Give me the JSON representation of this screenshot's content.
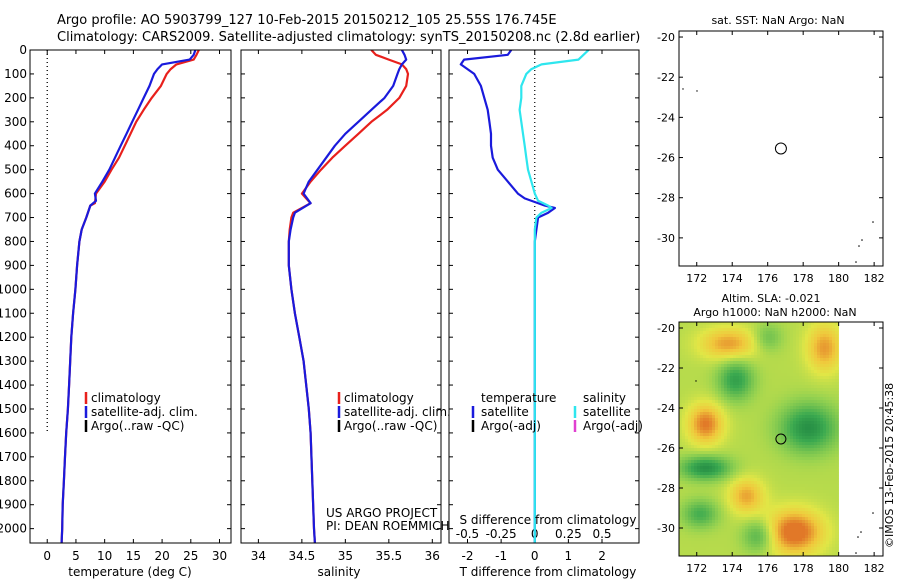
{
  "header": {
    "line1": "Argo profile: AO 5903799_127 10-Feb-2015 20150212_105 25.55S 176.745E",
    "line2": "Climatology: CARS2009. Satellite-adjusted climatology: synTS_20150208.nc (2.8d earlier)"
  },
  "credit": {
    "project": "US ARGO PROJECT",
    "pi": "PI: DEAN ROEMMICH"
  },
  "timestamp": "©IMOS 13-Feb-2015 20:45:38",
  "colors": {
    "climatology": "#e8201c",
    "satellite": "#1a1adc",
    "argo": "#000000",
    "sal_satellite": "#2ee6ee",
    "sal_argo": "#e040d0"
  },
  "chart_data": [
    {
      "type": "line",
      "name": "temperature-profile",
      "xlabel": "temperature (deg C)",
      "ylabel": "",
      "xlim": [
        -3,
        32
      ],
      "ylim": [
        0,
        2060
      ],
      "xticks": [
        "0",
        "5",
        "10",
        "15",
        "20",
        "25",
        "30"
      ],
      "xtick_values": [
        0,
        5,
        10,
        15,
        20,
        25,
        30
      ],
      "yticks": [
        "0",
        "100",
        "200",
        "300",
        "400",
        "500",
        "600",
        "700",
        "800",
        "900",
        "1000",
        "1100",
        "1200",
        "1300",
        "1400",
        "1500",
        "1600",
        "1700",
        "1800",
        "1900",
        "2000"
      ],
      "ytick_values": [
        0,
        100,
        200,
        300,
        400,
        500,
        600,
        700,
        800,
        900,
        1000,
        1100,
        1200,
        1300,
        1400,
        1500,
        1600,
        1700,
        1800,
        1900,
        2000
      ],
      "legend": [
        "climatology",
        "satellite-adj. clim.",
        "Argo(..raw -QC)"
      ],
      "legend_position": "bottom-right",
      "reference_line": {
        "x": 0,
        "from": 0,
        "to": 1600
      },
      "series": [
        {
          "name": "climatology",
          "key": "climatology",
          "points": [
            [
              26.4,
              0
            ],
            [
              26,
              20
            ],
            [
              25.5,
              40
            ],
            [
              22.5,
              60
            ],
            [
              21.5,
              80
            ],
            [
              20.8,
              100
            ],
            [
              19.8,
              150
            ],
            [
              18.2,
              200
            ],
            [
              16.8,
              250
            ],
            [
              15.5,
              300
            ],
            [
              14.5,
              350
            ],
            [
              13.5,
              400
            ],
            [
              12.5,
              450
            ],
            [
              11.2,
              500
            ],
            [
              10,
              550
            ],
            [
              8.5,
              600
            ],
            [
              8.3,
              640
            ],
            [
              7.5,
              650
            ],
            [
              6.8,
              700
            ],
            [
              6,
              750
            ],
            [
              5.6,
              800
            ],
            [
              5.2,
              900
            ],
            [
              4.9,
              1000
            ],
            [
              4.5,
              1100
            ],
            [
              4.2,
              1200
            ],
            [
              4,
              1300
            ],
            [
              3.8,
              1400
            ],
            [
              3.6,
              1500
            ],
            [
              3.3,
              1600
            ],
            [
              3.1,
              1700
            ],
            [
              2.9,
              1800
            ],
            [
              2.7,
              1900
            ],
            [
              2.6,
              2000
            ],
            [
              2.5,
              2060
            ]
          ]
        },
        {
          "name": "satellite-adj. clim.",
          "key": "satellite",
          "points": [
            [
              25.8,
              0
            ],
            [
              25.5,
              20
            ],
            [
              24.8,
              40
            ],
            [
              20,
              60
            ],
            [
              19.2,
              80
            ],
            [
              18.6,
              100
            ],
            [
              17.8,
              150
            ],
            [
              16.8,
              200
            ],
            [
              15.8,
              250
            ],
            [
              14.8,
              300
            ],
            [
              13.8,
              350
            ],
            [
              12.8,
              400
            ],
            [
              11.8,
              450
            ],
            [
              10.8,
              500
            ],
            [
              9.6,
              550
            ],
            [
              8.3,
              600
            ],
            [
              8.5,
              630
            ],
            [
              7.5,
              650
            ],
            [
              6.8,
              700
            ],
            [
              6,
              750
            ],
            [
              5.6,
              800
            ],
            [
              5.2,
              900
            ],
            [
              4.9,
              1000
            ],
            [
              4.5,
              1100
            ],
            [
              4.2,
              1200
            ],
            [
              4,
              1300
            ],
            [
              3.8,
              1400
            ],
            [
              3.6,
              1500
            ],
            [
              3.3,
              1600
            ],
            [
              3.1,
              1700
            ],
            [
              2.9,
              1800
            ],
            [
              2.7,
              1900
            ],
            [
              2.6,
              2000
            ],
            [
              2.5,
              2060
            ]
          ]
        }
      ]
    },
    {
      "type": "line",
      "name": "salinity-profile",
      "xlabel": "salinity",
      "xlim": [
        33.8,
        36.1
      ],
      "ylim": [
        0,
        2060
      ],
      "xticks": [
        "34",
        "34.5",
        "35",
        "35.5",
        "36"
      ],
      "xtick_values": [
        34,
        34.5,
        35,
        35.5,
        36
      ],
      "legend": [
        "climatology",
        "satellite-adj. clim.",
        "Argo(..raw -QC)"
      ],
      "legend_position": "bottom-right",
      "series": [
        {
          "name": "climatology",
          "key": "climatology",
          "points": [
            [
              35.3,
              0
            ],
            [
              35.35,
              20
            ],
            [
              35.5,
              40
            ],
            [
              35.65,
              60
            ],
            [
              35.7,
              80
            ],
            [
              35.72,
              100
            ],
            [
              35.7,
              150
            ],
            [
              35.62,
              200
            ],
            [
              35.48,
              250
            ],
            [
              35.3,
              300
            ],
            [
              35.15,
              350
            ],
            [
              35,
              400
            ],
            [
              34.85,
              450
            ],
            [
              34.72,
              500
            ],
            [
              34.6,
              550
            ],
            [
              34.5,
              600
            ],
            [
              34.6,
              640
            ],
            [
              34.4,
              680
            ],
            [
              34.38,
              700
            ],
            [
              34.36,
              750
            ],
            [
              34.35,
              800
            ],
            [
              34.35,
              900
            ],
            [
              34.38,
              1000
            ],
            [
              34.42,
              1100
            ],
            [
              34.47,
              1200
            ],
            [
              34.52,
              1300
            ],
            [
              34.55,
              1400
            ],
            [
              34.58,
              1500
            ],
            [
              34.6,
              1600
            ],
            [
              34.62,
              1800
            ],
            [
              34.64,
              2000
            ],
            [
              34.65,
              2060
            ]
          ]
        },
        {
          "name": "satellite-adj. clim.",
          "key": "satellite",
          "points": [
            [
              35.65,
              0
            ],
            [
              35.68,
              20
            ],
            [
              35.7,
              40
            ],
            [
              35.65,
              60
            ],
            [
              35.62,
              80
            ],
            [
              35.6,
              100
            ],
            [
              35.55,
              150
            ],
            [
              35.45,
              200
            ],
            [
              35.3,
              250
            ],
            [
              35.15,
              300
            ],
            [
              35,
              350
            ],
            [
              34.88,
              400
            ],
            [
              34.78,
              450
            ],
            [
              34.68,
              500
            ],
            [
              34.58,
              550
            ],
            [
              34.52,
              600
            ],
            [
              34.6,
              640
            ],
            [
              34.42,
              680
            ],
            [
              34.4,
              700
            ],
            [
              34.37,
              750
            ],
            [
              34.35,
              800
            ],
            [
              34.35,
              900
            ],
            [
              34.38,
              1000
            ],
            [
              34.42,
              1100
            ],
            [
              34.47,
              1200
            ],
            [
              34.52,
              1300
            ],
            [
              34.55,
              1400
            ],
            [
              34.58,
              1500
            ],
            [
              34.6,
              1600
            ],
            [
              34.62,
              1800
            ],
            [
              34.64,
              2000
            ],
            [
              34.65,
              2060
            ]
          ]
        }
      ]
    },
    {
      "type": "line",
      "name": "difference-profile",
      "xlabel": "T difference from climatology",
      "x2label": "S difference from climatology",
      "xlim": [
        -2.55,
        3.1
      ],
      "ylim": [
        0,
        2060
      ],
      "xticks": [
        "-2",
        "-1",
        "0",
        "1",
        "2"
      ],
      "xtick_values": [
        -2,
        -1,
        0,
        1,
        2
      ],
      "x2ticks": [
        "-0.5",
        "-0.25",
        "0",
        "0.25",
        "0.5"
      ],
      "x2tick_values": [
        -2,
        -1,
        0,
        1,
        2
      ],
      "reference_line": {
        "x": 0,
        "from": 0,
        "to": 2060
      },
      "legend_left": {
        "title": "temperature",
        "items": [
          "satellite",
          "Argo(-adj)"
        ]
      },
      "legend_right": {
        "title": "salinity",
        "items": [
          "satellite",
          "Argo(-adj)"
        ]
      },
      "legend_position": "bottom",
      "series": [
        {
          "name": "temperature satellite",
          "key": "satellite",
          "points": [
            [
              -0.7,
              0
            ],
            [
              -0.8,
              20
            ],
            [
              -2.1,
              40
            ],
            [
              -2.2,
              60
            ],
            [
              -2.0,
              80
            ],
            [
              -1.8,
              100
            ],
            [
              -1.6,
              150
            ],
            [
              -1.5,
              200
            ],
            [
              -1.4,
              250
            ],
            [
              -1.35,
              300
            ],
            [
              -1.3,
              350
            ],
            [
              -1.3,
              400
            ],
            [
              -1.25,
              450
            ],
            [
              -1.1,
              500
            ],
            [
              -0.8,
              550
            ],
            [
              -0.5,
              600
            ],
            [
              -0.3,
              620
            ],
            [
              0.3,
              650
            ],
            [
              0.6,
              660
            ],
            [
              0.4,
              680
            ],
            [
              0.1,
              700
            ],
            [
              0.05,
              750
            ],
            [
              0,
              800
            ],
            [
              0,
              900
            ],
            [
              0,
              1000
            ],
            [
              0,
              1100
            ],
            [
              0,
              1200
            ],
            [
              0,
              1300
            ],
            [
              0,
              1400
            ],
            [
              0,
              1500
            ],
            [
              0,
              1700
            ],
            [
              0,
              2060
            ]
          ]
        },
        {
          "name": "salinity satellite",
          "key": "sal_satellite",
          "points": [
            [
              1.6,
              0
            ],
            [
              1.3,
              40
            ],
            [
              0.2,
              60
            ],
            [
              -0.1,
              80
            ],
            [
              -0.25,
              100
            ],
            [
              -0.4,
              150
            ],
            [
              -0.4,
              200
            ],
            [
              -0.45,
              250
            ],
            [
              -0.4,
              300
            ],
            [
              -0.35,
              350
            ],
            [
              -0.3,
              400
            ],
            [
              -0.25,
              450
            ],
            [
              -0.2,
              500
            ],
            [
              -0.1,
              550
            ],
            [
              0,
              600
            ],
            [
              0.1,
              630
            ],
            [
              0.4,
              650
            ],
            [
              0.5,
              660
            ],
            [
              0.2,
              680
            ],
            [
              0.05,
              700
            ],
            [
              0,
              750
            ],
            [
              0,
              900
            ],
            [
              0,
              1200
            ],
            [
              0,
              1500
            ],
            [
              0,
              2060
            ]
          ]
        }
      ]
    },
    {
      "type": "map",
      "name": "sst-map",
      "title": "sat. SST: NaN Argo: NaN",
      "xlim": [
        171,
        182.5
      ],
      "ylim": [
        -31.4,
        -19.7
      ],
      "xticks": [
        "172",
        "174",
        "176",
        "178",
        "180",
        "182"
      ],
      "xtick_values": [
        172,
        174,
        176,
        178,
        180,
        182
      ],
      "yticks": [
        "-20",
        "-22",
        "-24",
        "-26",
        "-28",
        "-30"
      ],
      "ytick_values": [
        -20,
        -22,
        -24,
        -26,
        -28,
        -30
      ],
      "marker": {
        "lon": 176.745,
        "lat": -25.55
      }
    },
    {
      "type": "heatmap",
      "name": "sla-map",
      "title_line1": "Altim. SLA: -0.021",
      "title_line2": "Argo h1000: NaN h2000: NaN",
      "xlim": [
        171,
        182.5
      ],
      "ylim": [
        -31.4,
        -19.7
      ],
      "data_lon_max": 180,
      "xticks": [
        "172",
        "174",
        "176",
        "178",
        "180",
        "182"
      ],
      "xtick_values": [
        172,
        174,
        176,
        178,
        180,
        182
      ],
      "yticks": [
        "-20",
        "-22",
        "-24",
        "-26",
        "-28",
        "-30"
      ],
      "ytick_values": [
        -20,
        -22,
        -24,
        -26,
        -28,
        -30
      ],
      "marker": {
        "lon": 176.745,
        "lat": -25.55
      },
      "blobs": [
        {
          "lon": 177.5,
          "lat": -30.2,
          "level": 1.0,
          "rx": 1.6,
          "ry": 1.1
        },
        {
          "lon": 172.5,
          "lat": -24.8,
          "level": 0.85,
          "rx": 1.0,
          "ry": 1.0
        },
        {
          "lon": 173.8,
          "lat": -20.8,
          "level": 0.7,
          "rx": 1.6,
          "ry": 0.8
        },
        {
          "lon": 179.2,
          "lat": -21.0,
          "level": 0.7,
          "rx": 1.0,
          "ry": 1.2
        },
        {
          "lon": 174.8,
          "lat": -28.4,
          "level": 0.65,
          "rx": 1.0,
          "ry": 0.9
        },
        {
          "lon": 178.3,
          "lat": -25.0,
          "level": -0.9,
          "rx": 1.6,
          "ry": 1.2
        },
        {
          "lon": 172.5,
          "lat": -27.0,
          "level": -0.9,
          "rx": 1.4,
          "ry": 0.6
        },
        {
          "lon": 174.2,
          "lat": -22.6,
          "level": -0.75,
          "rx": 1.0,
          "ry": 1.0
        },
        {
          "lon": 175.5,
          "lat": -30.4,
          "level": -0.6,
          "rx": 0.9,
          "ry": 0.8
        },
        {
          "lon": 172.2,
          "lat": -29.3,
          "level": -0.6,
          "rx": 1.0,
          "ry": 0.7
        },
        {
          "lon": 176.0,
          "lat": -20.5,
          "level": -0.4,
          "rx": 0.8,
          "ry": 0.7
        }
      ]
    }
  ]
}
